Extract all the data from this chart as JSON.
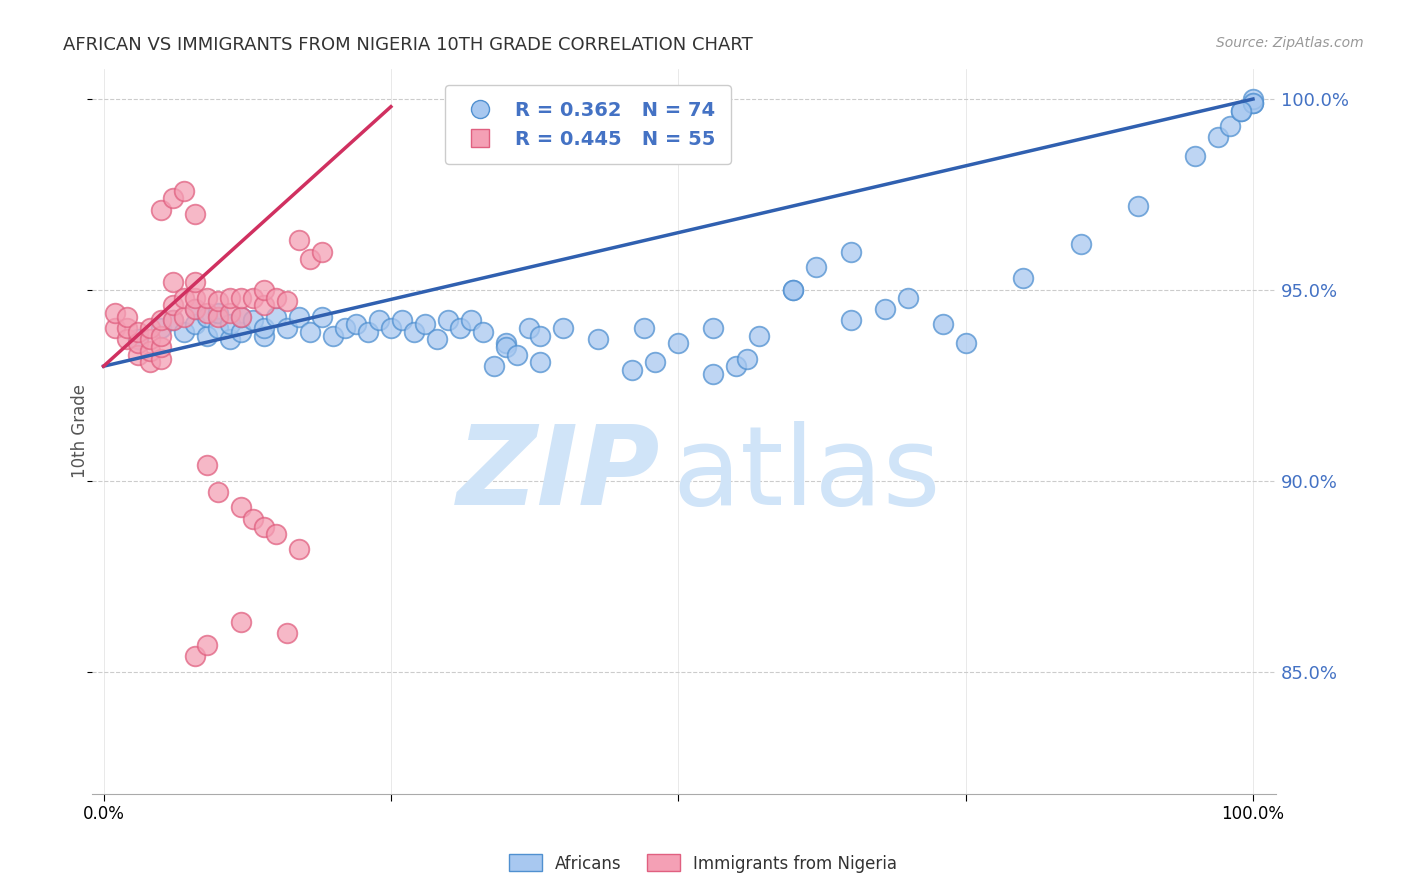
{
  "title": "AFRICAN VS IMMIGRANTS FROM NIGERIA 10TH GRADE CORRELATION CHART",
  "source": "Source: ZipAtlas.com",
  "ylabel": "10th Grade",
  "y_ticks": [
    0.85,
    0.9,
    0.95,
    1.0
  ],
  "y_tick_labels": [
    "85.0%",
    "90.0%",
    "95.0%",
    "100.0%"
  ],
  "blue_R": 0.362,
  "blue_N": 74,
  "pink_R": 0.445,
  "pink_N": 55,
  "blue_color": "#A8C8F0",
  "pink_color": "#F4A0B5",
  "blue_edge_color": "#5090D0",
  "pink_edge_color": "#E06080",
  "blue_line_color": "#3060B0",
  "pink_line_color": "#D03060",
  "watermark_zip": "ZIP",
  "watermark_atlas": "atlas",
  "watermark_color": "#D0E4F8",
  "legend_label_blue": "Africans",
  "legend_label_pink": "Immigrants from Nigeria",
  "blue_scatter_x": [
    0.03,
    0.05,
    0.06,
    0.07,
    0.08,
    0.08,
    0.09,
    0.09,
    0.1,
    0.1,
    0.11,
    0.11,
    0.12,
    0.12,
    0.13,
    0.14,
    0.14,
    0.15,
    0.16,
    0.17,
    0.18,
    0.19,
    0.2,
    0.21,
    0.22,
    0.23,
    0.24,
    0.25,
    0.26,
    0.27,
    0.28,
    0.29,
    0.3,
    0.31,
    0.32,
    0.33,
    0.35,
    0.37,
    0.38,
    0.4,
    0.43,
    0.47,
    0.5,
    0.53,
    0.57,
    0.6,
    0.65,
    0.68,
    0.7,
    0.73,
    0.75,
    0.8,
    0.85,
    0.9,
    0.95,
    0.97,
    0.98,
    0.99,
    1.0,
    1.0,
    1.0,
    0.99,
    0.34,
    0.35,
    0.36,
    0.38,
    0.46,
    0.48,
    0.53,
    0.55,
    0.56,
    0.6,
    0.62,
    0.65
  ],
  "blue_scatter_y": [
    0.937,
    0.94,
    0.942,
    0.939,
    0.941,
    0.945,
    0.938,
    0.943,
    0.94,
    0.944,
    0.937,
    0.941,
    0.939,
    0.943,
    0.942,
    0.938,
    0.94,
    0.943,
    0.94,
    0.943,
    0.939,
    0.943,
    0.938,
    0.94,
    0.941,
    0.939,
    0.942,
    0.94,
    0.942,
    0.939,
    0.941,
    0.937,
    0.942,
    0.94,
    0.942,
    0.939,
    0.936,
    0.94,
    0.938,
    0.94,
    0.937,
    0.94,
    0.936,
    0.94,
    0.938,
    0.95,
    0.942,
    0.945,
    0.948,
    0.941,
    0.936,
    0.953,
    0.962,
    0.972,
    0.985,
    0.99,
    0.993,
    0.997,
    0.999,
    1.0,
    0.999,
    0.997,
    0.93,
    0.935,
    0.933,
    0.931,
    0.929,
    0.931,
    0.928,
    0.93,
    0.932,
    0.95,
    0.956,
    0.96
  ],
  "pink_scatter_x": [
    0.01,
    0.01,
    0.02,
    0.02,
    0.02,
    0.03,
    0.03,
    0.03,
    0.04,
    0.04,
    0.04,
    0.04,
    0.05,
    0.05,
    0.05,
    0.05,
    0.06,
    0.06,
    0.06,
    0.07,
    0.07,
    0.08,
    0.08,
    0.08,
    0.09,
    0.09,
    0.1,
    0.1,
    0.11,
    0.11,
    0.12,
    0.12,
    0.13,
    0.14,
    0.14,
    0.15,
    0.16,
    0.17,
    0.18,
    0.19,
    0.05,
    0.06,
    0.07,
    0.08,
    0.09,
    0.1,
    0.12,
    0.13,
    0.14,
    0.15,
    0.17,
    0.08,
    0.09,
    0.12,
    0.16
  ],
  "pink_scatter_y": [
    0.94,
    0.944,
    0.937,
    0.94,
    0.943,
    0.933,
    0.936,
    0.939,
    0.931,
    0.934,
    0.937,
    0.94,
    0.932,
    0.935,
    0.938,
    0.942,
    0.942,
    0.946,
    0.952,
    0.943,
    0.948,
    0.945,
    0.948,
    0.952,
    0.944,
    0.948,
    0.943,
    0.947,
    0.944,
    0.948,
    0.943,
    0.948,
    0.948,
    0.946,
    0.95,
    0.948,
    0.947,
    0.963,
    0.958,
    0.96,
    0.971,
    0.974,
    0.976,
    0.97,
    0.904,
    0.897,
    0.893,
    0.89,
    0.888,
    0.886,
    0.882,
    0.854,
    0.857,
    0.863,
    0.86
  ],
  "blue_line_x0": 0.0,
  "blue_line_y0": 0.93,
  "blue_line_x1": 1.0,
  "blue_line_y1": 1.0,
  "pink_line_x0": 0.0,
  "pink_line_y0": 0.93,
  "pink_line_x1": 0.25,
  "pink_line_y1": 0.998,
  "ylim_min": 0.818,
  "ylim_max": 1.008,
  "xlim_min": -0.01,
  "xlim_max": 1.02
}
